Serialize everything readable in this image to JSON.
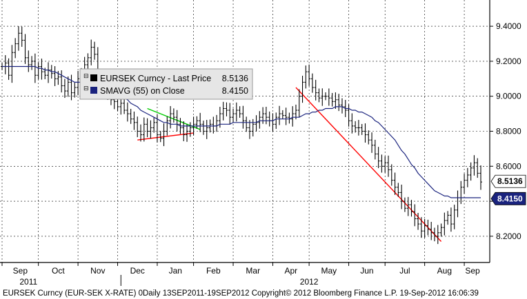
{
  "chart_data": {
    "type": "line",
    "ylim": [
      8.05,
      9.55
    ],
    "y_ticks": [
      "9.4000",
      "9.2000",
      "9.0000",
      "8.8000",
      "8.6000",
      "8.4000",
      "8.2000"
    ],
    "y_tick_values": [
      9.4,
      9.2,
      9.0,
      8.8,
      8.6,
      8.4,
      8.2
    ],
    "x_ticks": [
      "Sep",
      "Oct",
      "Nov",
      "Dec",
      "Jan",
      "Feb",
      "Mar",
      "Apr",
      "May",
      "Jun",
      "Jul",
      "Aug",
      "Sep"
    ],
    "years": [
      "2011",
      "2012"
    ],
    "grid": true,
    "legend": {
      "placement": "top-left",
      "entries": [
        {
          "name": "EURSEK Curncy - Last Price",
          "value": "8.5136",
          "color": "#000000"
        },
        {
          "name": "SMAVG (55) on Close",
          "value": "8.4150",
          "color": "#1a237e"
        }
      ]
    },
    "last_price_tag": "8.5136",
    "sma_tag": "8.4150",
    "series": [
      {
        "name": "EURSEK Curncy - Last Price",
        "color": "#000000",
        "values": [
          9.17,
          9.19,
          9.12,
          9.25,
          9.3,
          9.36,
          9.32,
          9.22,
          9.18,
          9.2,
          9.12,
          9.17,
          9.14,
          9.12,
          9.15,
          9.13,
          9.1,
          9.11,
          9.06,
          9.03,
          9.08,
          9.02,
          9.05,
          9.1,
          9.14,
          9.18,
          9.22,
          9.28,
          9.24,
          9.12,
          9.08,
          9.05,
          9.02,
          8.98,
          8.97,
          8.94,
          8.96,
          8.92,
          8.9,
          8.87,
          8.85,
          8.8,
          8.78,
          8.84,
          8.8,
          8.82,
          8.85,
          8.78,
          8.76,
          8.8,
          8.86,
          8.9,
          8.88,
          8.84,
          8.82,
          8.78,
          8.8,
          8.82,
          8.84,
          8.86,
          8.84,
          8.8,
          8.82,
          8.84,
          8.83,
          8.86,
          8.9,
          8.93,
          8.92,
          8.88,
          8.9,
          8.92,
          8.9,
          8.86,
          8.82,
          8.8,
          8.84,
          8.85,
          8.88,
          8.9,
          8.88,
          8.86,
          8.84,
          8.88,
          8.9,
          8.89,
          8.88,
          8.87,
          8.9,
          8.92,
          9.0,
          9.08,
          9.14,
          9.1,
          9.05,
          9.02,
          8.99,
          9.0,
          9.0,
          8.99,
          8.97,
          8.98,
          8.95,
          8.94,
          8.92,
          8.86,
          8.83,
          8.82,
          8.82,
          8.8,
          8.78,
          8.75,
          8.72,
          8.67,
          8.63,
          8.6,
          8.62,
          8.58,
          8.52,
          8.48,
          8.45,
          8.4,
          8.36,
          8.38,
          8.34,
          8.3,
          8.27,
          8.23,
          8.26,
          8.24,
          8.22,
          8.2,
          8.22,
          8.25,
          8.29,
          8.32,
          8.27,
          8.35,
          8.42,
          8.48,
          8.52,
          8.55,
          8.59,
          8.62,
          8.56,
          8.51
        ]
      },
      {
        "name": "SMAVG (55) on Close",
        "color": "#1a237e",
        "values": [
          9.17,
          9.17,
          9.17,
          9.17,
          9.17,
          9.17,
          9.17,
          9.17,
          9.17,
          9.17,
          9.17,
          9.16,
          9.16,
          9.15,
          9.15,
          9.14,
          9.14,
          9.13,
          9.12,
          9.11,
          9.1,
          9.09,
          9.08,
          9.08,
          9.08,
          9.09,
          9.09,
          9.09,
          9.09,
          9.08,
          9.07,
          9.06,
          9.05,
          9.04,
          9.03,
          9.01,
          9.0,
          8.99,
          8.98,
          8.96,
          8.95,
          8.94,
          8.92,
          8.91,
          8.9,
          8.89,
          8.88,
          8.87,
          8.86,
          8.85,
          8.85,
          8.84,
          8.84,
          8.84,
          8.83,
          8.83,
          8.83,
          8.83,
          8.83,
          8.83,
          8.83,
          8.83,
          8.83,
          8.83,
          8.83,
          8.83,
          8.84,
          8.84,
          8.84,
          8.84,
          8.85,
          8.85,
          8.85,
          8.85,
          8.85,
          8.85,
          8.85,
          8.85,
          8.86,
          8.86,
          8.86,
          8.86,
          8.86,
          8.87,
          8.87,
          8.87,
          8.87,
          8.87,
          8.88,
          8.88,
          8.88,
          8.89,
          8.9,
          8.9,
          8.91,
          8.91,
          8.92,
          8.92,
          8.93,
          8.93,
          8.93,
          8.94,
          8.94,
          8.94,
          8.93,
          8.93,
          8.92,
          8.92,
          8.91,
          8.91,
          8.9,
          8.89,
          8.88,
          8.86,
          8.85,
          8.83,
          8.81,
          8.79,
          8.77,
          8.75,
          8.72,
          8.69,
          8.67,
          8.64,
          8.61,
          8.59,
          8.56,
          8.54,
          8.52,
          8.5,
          8.48,
          8.46,
          8.45,
          8.44,
          8.43,
          8.43,
          8.42,
          8.42,
          8.42,
          8.42,
          8.42,
          8.42,
          8.42,
          8.42,
          8.42,
          8.42
        ]
      }
    ],
    "annotations": [
      {
        "name": "support-trendline",
        "color": "#ff0000",
        "x": [
          41,
          58
        ],
        "y": [
          8.75,
          8.79
        ]
      },
      {
        "name": "resistance-trendline",
        "color": "#00cc00",
        "x": [
          44,
          60
        ],
        "y": [
          8.93,
          8.81
        ]
      },
      {
        "name": "downtrend-line",
        "color": "#ff0000",
        "x": [
          89,
          133
        ],
        "y": [
          9.05,
          8.17
        ]
      }
    ]
  },
  "footer": "EURSEK Curncy (EUR-SEK X-RATE) 0Daily 13SEP2011-19SEP2012 Copyright© 2012 Bloomberg Finance L.P. 19-Sep-2012 16:06:39"
}
